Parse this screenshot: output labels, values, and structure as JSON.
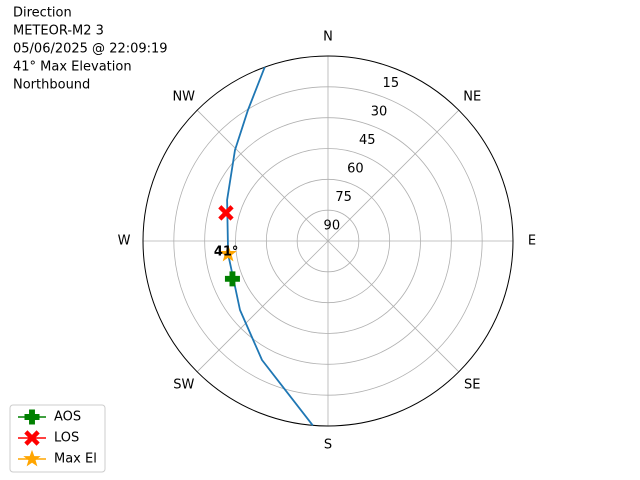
{
  "chart_data": {
    "type": "polar",
    "title_lines": [
      "Direction",
      "METEOR-M2 3",
      "05/06/2025 @ 22:09:19",
      "41° Max Elevation",
      "Northbound"
    ],
    "rlim": [
      90,
      0
    ],
    "rticks": [
      90,
      75,
      60,
      45,
      30,
      15
    ],
    "thetaticks": [
      {
        "value": 0,
        "label": "N"
      },
      {
        "value": 45,
        "label": "NE"
      },
      {
        "value": 90,
        "label": "E"
      },
      {
        "value": 135,
        "label": "SE"
      },
      {
        "value": 180,
        "label": "S"
      },
      {
        "value": 225,
        "label": "SW"
      },
      {
        "value": 270,
        "label": "W"
      },
      {
        "value": 315,
        "label": "NW"
      }
    ],
    "grid": true,
    "legend": "lower left",
    "track": {
      "color": "#1f77b4",
      "azimuth": [
        340,
        328.6,
        314.4,
        292.1,
        262.6,
        231.9,
        209,
        184.7
      ],
      "elevation": [
        0,
        15.3,
        26.7,
        37,
        41,
        35.6,
        23.8,
        0
      ]
    },
    "markers": [
      {
        "name": "AOS",
        "color": "green",
        "marker": "plus",
        "azimuth": 248.4,
        "elevation": 40
      },
      {
        "name": "LOS",
        "color": "red",
        "marker": "x",
        "azimuth": 285.4,
        "elevation": 38.5
      },
      {
        "name": "Max El",
        "color": "orange",
        "marker": "star",
        "azimuth": 262.6,
        "elevation": 41
      }
    ],
    "annotation": "41°"
  }
}
